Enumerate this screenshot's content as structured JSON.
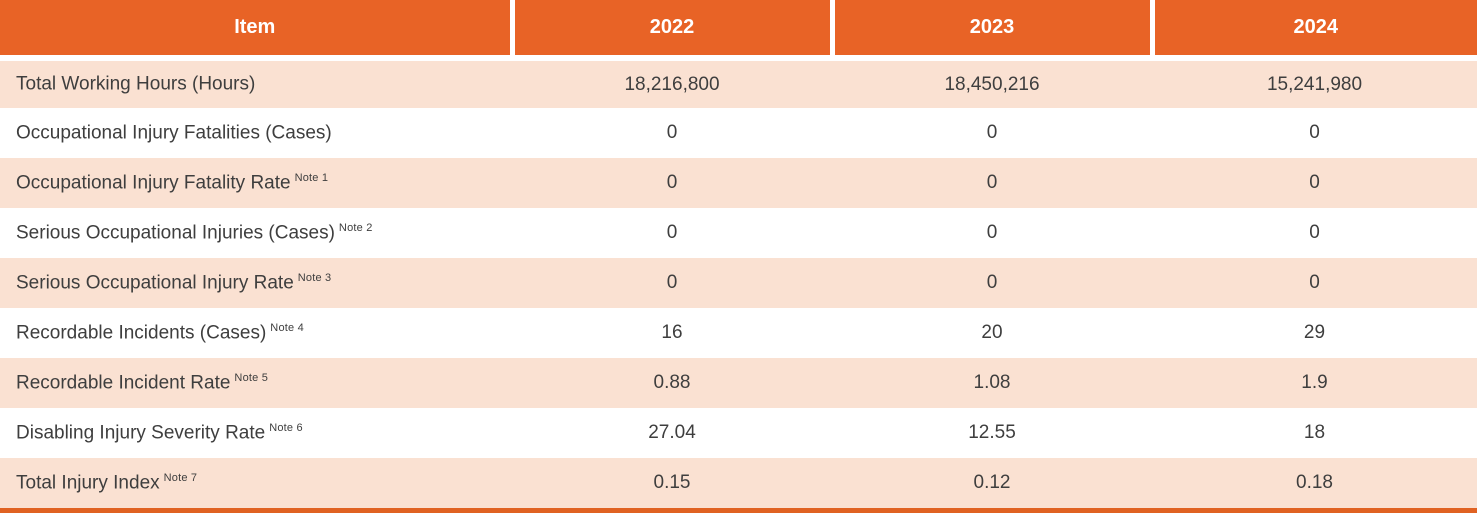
{
  "colors": {
    "header_background": "#e86326",
    "alt_row_background": "#fae1d2",
    "header_text": "#ffffff",
    "body_text": "#3e3e3e",
    "bottom_bar": "#e06222"
  },
  "table": {
    "columns": {
      "item": "Item",
      "y2022": "2022",
      "y2023": "2023",
      "y2024": "2024"
    },
    "rows": [
      {
        "label": "Total Working Hours (Hours)",
        "note": "",
        "values": [
          "18,216,800",
          "18,450,216",
          "15,241,980"
        ]
      },
      {
        "label": "Occupational Injury Fatalities (Cases)",
        "note": "",
        "values": [
          "0",
          "0",
          "0"
        ]
      },
      {
        "label": "Occupational Injury Fatality Rate",
        "note": "Note 1",
        "values": [
          "0",
          "0",
          "0"
        ]
      },
      {
        "label": "Serious Occupational Injuries (Cases)",
        "note": "Note 2",
        "values": [
          "0",
          "0",
          "0"
        ]
      },
      {
        "label": "Serious Occupational Injury Rate",
        "note": "Note 3",
        "values": [
          "0",
          "0",
          "0"
        ]
      },
      {
        "label": "Recordable Incidents (Cases)",
        "note": "Note 4",
        "values": [
          "16",
          "20",
          "29"
        ]
      },
      {
        "label": "Recordable Incident Rate",
        "note": "Note 5",
        "values": [
          "0.88",
          "1.08",
          "1.9"
        ]
      },
      {
        "label": "Disabling Injury Severity Rate",
        "note": "Note 6",
        "values": [
          "27.04",
          "12.55",
          "18"
        ]
      },
      {
        "label": "Total Injury Index",
        "note": "Note 7",
        "values": [
          "0.15",
          "0.12",
          "0.18"
        ]
      }
    ]
  }
}
